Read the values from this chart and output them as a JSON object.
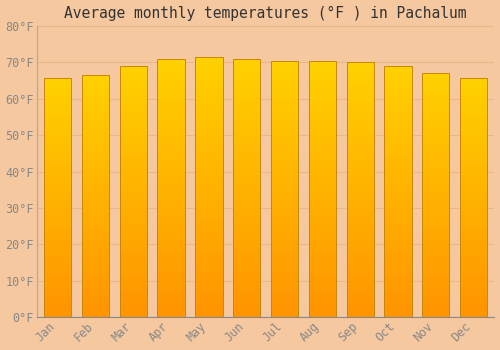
{
  "title": "Average monthly temperatures (°F ) in Pachalum",
  "months": [
    "Jan",
    "Feb",
    "Mar",
    "Apr",
    "May",
    "Jun",
    "Jul",
    "Aug",
    "Sep",
    "Oct",
    "Nov",
    "Dec"
  ],
  "values": [
    65.8,
    66.6,
    69.1,
    70.9,
    71.4,
    71.0,
    70.5,
    70.3,
    70.1,
    69.1,
    67.1,
    65.8
  ],
  "bar_color_top": "#FFD966",
  "bar_color_bottom": "#F0A500",
  "bar_edge_color": "#C8860A",
  "background_color": "#F5C8A0",
  "plot_bg_color": "#F5C8A0",
  "grid_color": "#E8B88A",
  "title_color": "#333333",
  "tick_label_color": "#888888",
  "ylim": [
    0,
    80
  ],
  "yticks": [
    0,
    10,
    20,
    30,
    40,
    50,
    60,
    70,
    80
  ],
  "ytick_labels": [
    "0°F",
    "10°F",
    "20°F",
    "30°F",
    "40°F",
    "50°F",
    "60°F",
    "70°F",
    "80°F"
  ],
  "title_fontsize": 10.5,
  "tick_fontsize": 8.5,
  "font_family": "monospace",
  "bar_width": 0.72,
  "figsize": [
    5.0,
    3.5
  ],
  "dpi": 100
}
